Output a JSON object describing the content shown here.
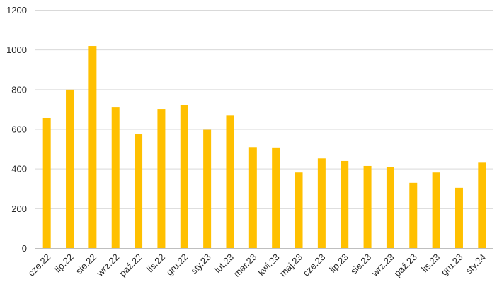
{
  "chart_data": {
    "type": "bar",
    "title": "",
    "xlabel": "",
    "ylabel": "",
    "categories": [
      "cze.22",
      "lip.22",
      "sie.22",
      "wrz.22",
      "paź.22",
      "lis.22",
      "gru.22",
      "sty.23",
      "lut.23",
      "mar.23",
      "kwi.23",
      "maj.23",
      "cze.23",
      "lip.23",
      "sie.23",
      "wrz.23",
      "paź.23",
      "lis.23",
      "gru.23",
      "sty.24"
    ],
    "values": [
      657,
      800,
      1020,
      710,
      575,
      703,
      724,
      598,
      670,
      510,
      508,
      382,
      453,
      440,
      415,
      408,
      330,
      382,
      305,
      435
    ],
    "ylim": [
      0,
      1200
    ],
    "yticks": [
      0,
      200,
      400,
      600,
      800,
      1000,
      1200
    ],
    "grid": true,
    "legend": "none",
    "bar_color": "#FFC000"
  }
}
